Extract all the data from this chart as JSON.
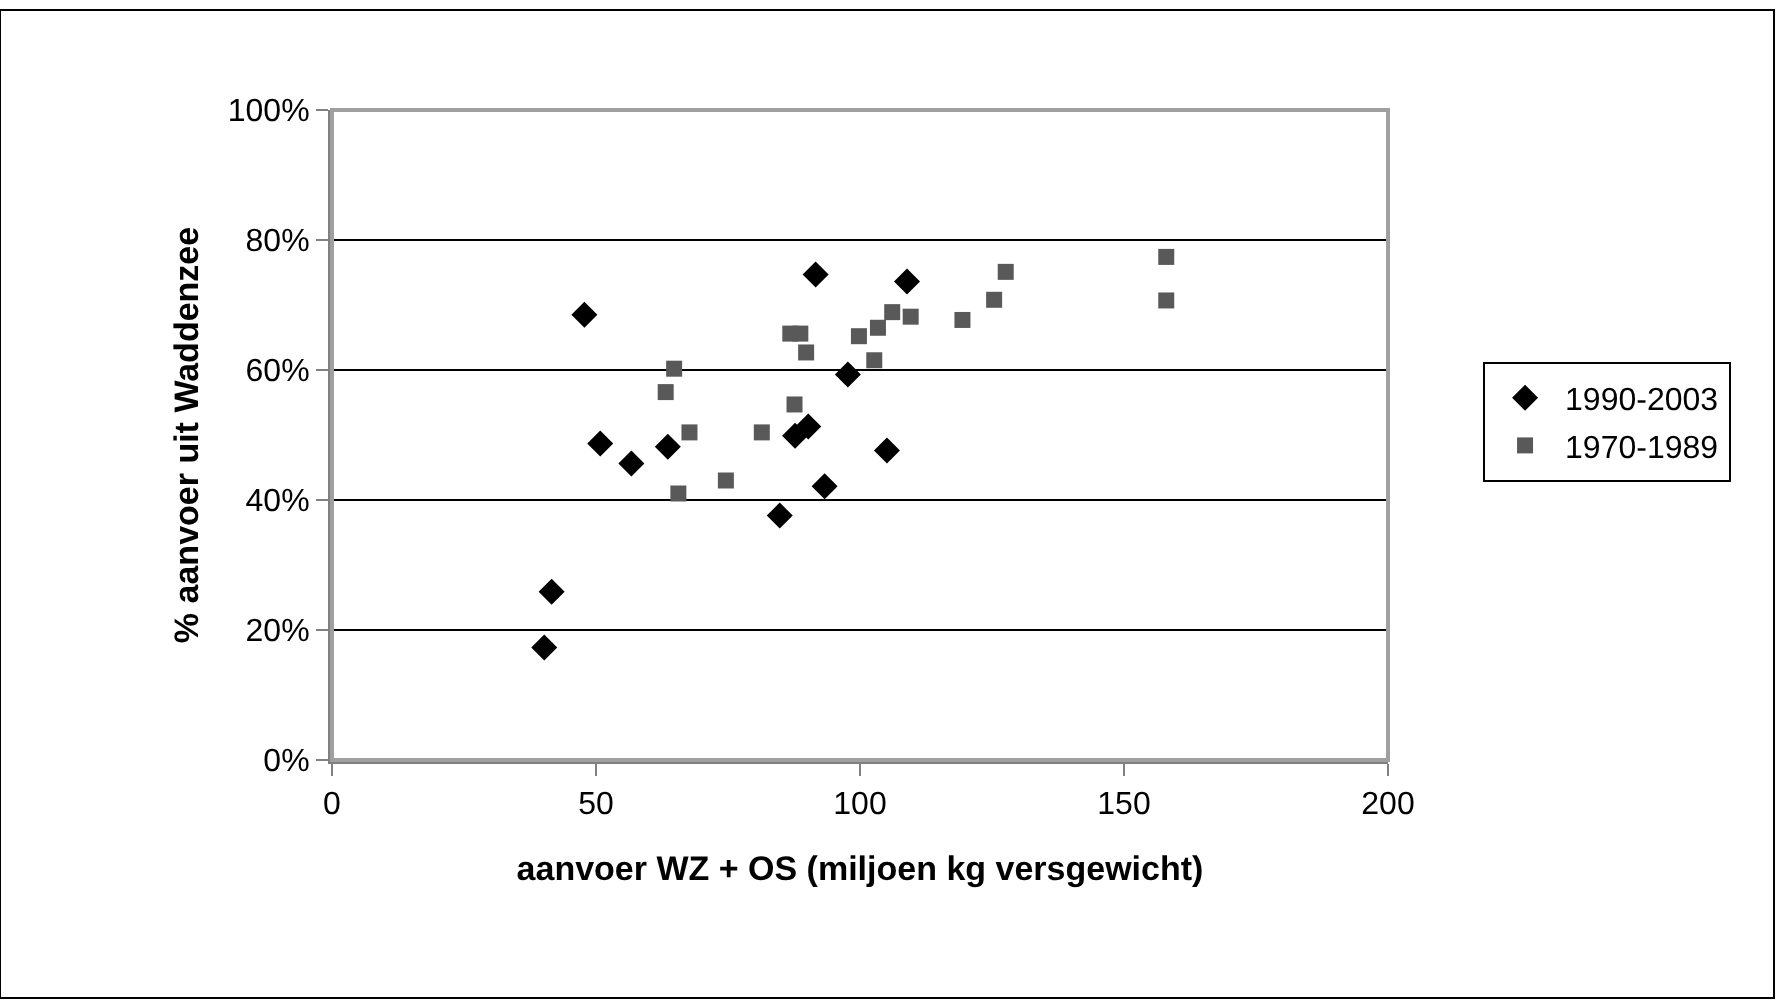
{
  "chart_data": {
    "type": "scatter",
    "xlabel": "aanvoer WZ + OS (miljoen kg versgewicht)",
    "ylabel": "% aanvoer uit Waddenzee",
    "xlim": [
      0,
      200
    ],
    "xticks": [
      0,
      50,
      100,
      150,
      200
    ],
    "ylim": [
      0,
      100
    ],
    "yticks": [
      {
        "value": 0,
        "label": "0%"
      },
      {
        "value": 20,
        "label": "20%"
      },
      {
        "value": 40,
        "label": "40%"
      },
      {
        "value": 60,
        "label": "60%"
      },
      {
        "value": 80,
        "label": "80%"
      },
      {
        "value": 100,
        "label": "100%"
      }
    ],
    "grid": "y",
    "legend": "right",
    "series": [
      {
        "name": "1990-2003",
        "color": "#000000",
        "marker": "diamond",
        "x": [
          47.8,
          50.8,
          56.7,
          63.6,
          41.6,
          40.2,
          84.8,
          87.7,
          90.2,
          93.3,
          91.6,
          97.7,
          105.1,
          108.9
        ],
        "values": [
          68.5,
          48.7,
          45.6,
          48.2,
          25.9,
          17.3,
          37.6,
          49.9,
          51.3,
          42.1,
          74.7,
          59.3,
          47.6,
          73.6
        ]
      },
      {
        "name": "1970-1989",
        "color": "#595959",
        "marker": "square",
        "x": [
          63.2,
          64.8,
          67.7,
          65.6,
          74.6,
          81.4,
          87.6,
          86.8,
          88.7,
          89.8,
          99.8,
          102.7,
          103.4,
          106.1,
          109.6,
          119.4,
          125.4,
          127.6,
          158,
          158
        ],
        "values": [
          56.6,
          60.2,
          50.4,
          41.0,
          43.0,
          50.4,
          54.7,
          65.6,
          65.6,
          62.7,
          65.2,
          61.5,
          66.5,
          68.9,
          68.2,
          67.7,
          70.8,
          75.1,
          77.4,
          70.7
        ]
      }
    ]
  }
}
